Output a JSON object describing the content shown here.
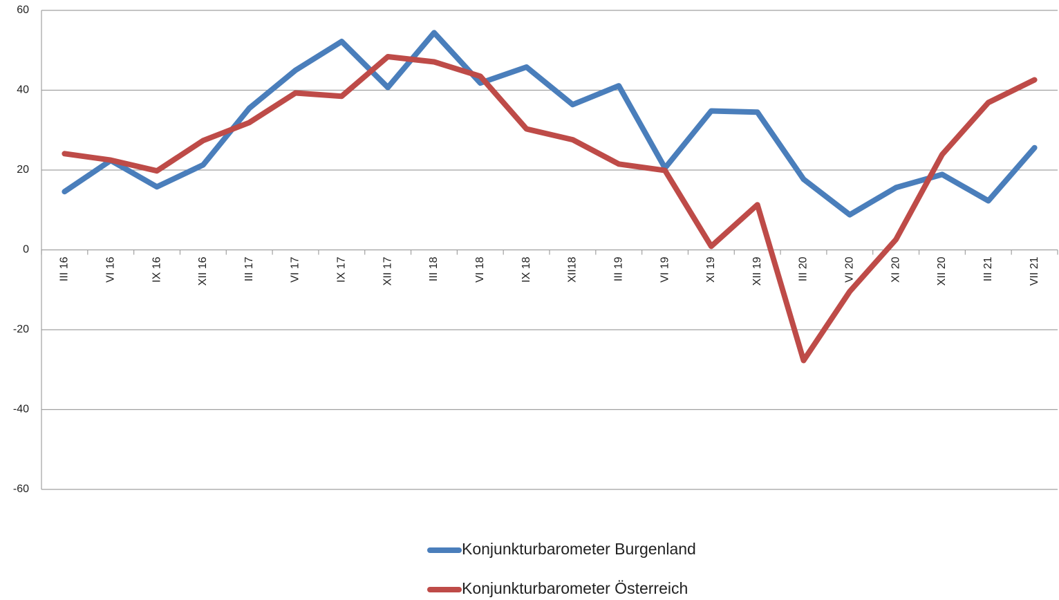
{
  "chart_data": {
    "type": "line",
    "categories": [
      "III 16",
      "VI 16",
      "IX 16",
      "XII 16",
      "III 17",
      "VI 17",
      "IX 17",
      "XII 17",
      "III 18",
      "VI 18",
      "IX 18",
      "XII18",
      "III 19",
      "VI 19",
      "XI 19",
      "XII 19",
      "III 20",
      "VI 20",
      "XI 20",
      "XII 20",
      "III 21",
      "VII 21"
    ],
    "series": [
      {
        "name": "Konjunkturbarometer Burgenland",
        "color": "#4a7ebb",
        "values": [
          14.6,
          22.4,
          15.8,
          21.3,
          35.5,
          45,
          52.2,
          40.7,
          54.4,
          41.8,
          45.8,
          36.4,
          41.1,
          20.5,
          34.8,
          34.5,
          17.7,
          8.8,
          15.6,
          18.9,
          12.3,
          25.6
        ]
      },
      {
        "name": "Konjunkturbarometer Österreich",
        "color": "#be4b48",
        "values": [
          24.1,
          22.5,
          19.8,
          27.4,
          31.9,
          39.3,
          38.5,
          48.4,
          47.1,
          43.5,
          30.3,
          27.6,
          21.5,
          19.9,
          0.9,
          11.3,
          -27.7,
          -10.4,
          2.6,
          23.9,
          36.9,
          42.6
        ]
      }
    ],
    "ylim": [
      -60,
      60
    ],
    "yticks": [
      -60,
      -40,
      -20,
      0,
      20,
      40,
      60
    ],
    "grid": true,
    "legend": "bottom"
  }
}
